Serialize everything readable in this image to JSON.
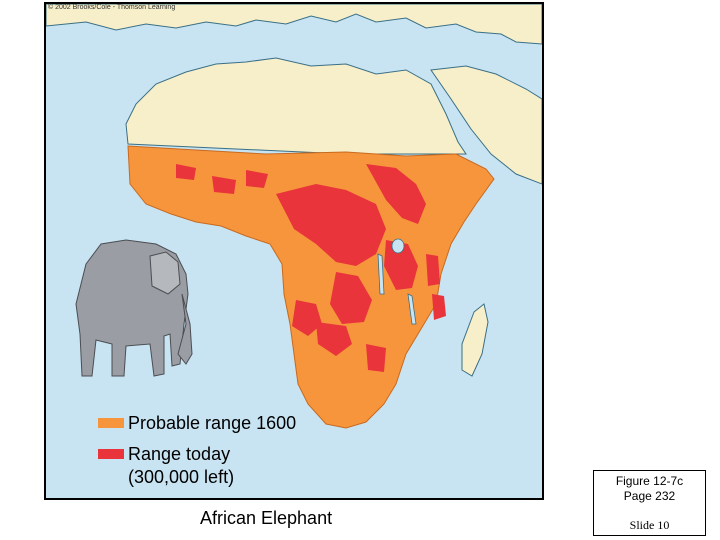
{
  "copyright": "© 2002 Brooks/Cole - Thomson Learning",
  "legend": [
    {
      "label": "Probable range 1600",
      "color": "#f7953c"
    },
    {
      "label": "Range today\n(300,000 left)",
      "color": "#e8343a"
    }
  ],
  "caption": "African Elephant",
  "figure_box": {
    "reference": "Figure 12-7c\nPage 232",
    "slide": "Slide 10"
  },
  "colors": {
    "ocean": "#c8e4f2",
    "land": "#f7efc9",
    "probable_range": "#f7953c",
    "range_today": "#e8343a"
  }
}
